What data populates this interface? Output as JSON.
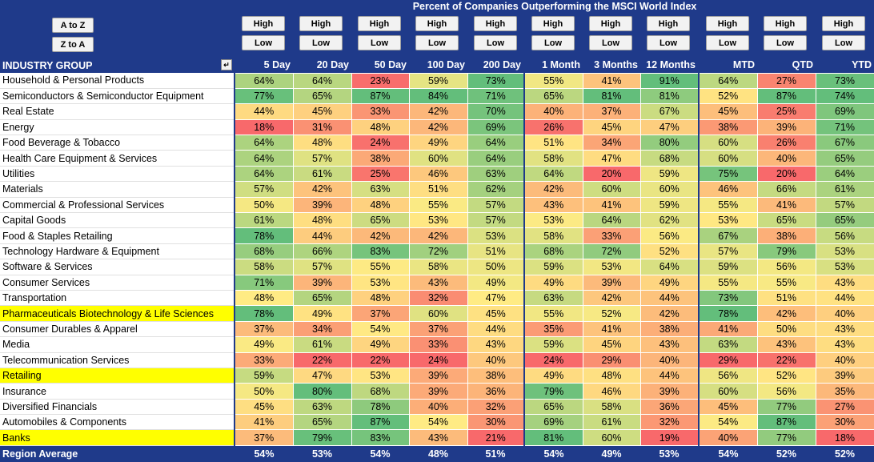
{
  "sort_buttons": {
    "a_to_z": "A to Z",
    "z_to_a": "Z to A"
  },
  "title": "Percent of Companies Outperforming the MSCI World Index",
  "filter_buttons": {
    "high": "High",
    "low": "Low"
  },
  "header_first": "INDUSTRY GROUP",
  "filter_icon": "dropdown-filter-icon",
  "columns": [
    "5 Day",
    "20 Day",
    "50 Day",
    "100 Day",
    "200 Day",
    "1 Month",
    "3 Months",
    "12 Months",
    "MTD",
    "QTD",
    "YTD"
  ],
  "rows": [
    {
      "label": "Household & Personal Products",
      "highlight": false,
      "values": [
        "64%",
        "64%",
        "23%",
        "59%",
        "73%",
        "55%",
        "41%",
        "91%",
        "64%",
        "27%",
        "73%"
      ]
    },
    {
      "label": "Semiconductors & Semiconductor Equipment",
      "highlight": false,
      "values": [
        "77%",
        "65%",
        "87%",
        "84%",
        "71%",
        "65%",
        "81%",
        "81%",
        "52%",
        "87%",
        "74%"
      ]
    },
    {
      "label": "Real Estate",
      "highlight": false,
      "values": [
        "44%",
        "45%",
        "33%",
        "42%",
        "70%",
        "40%",
        "37%",
        "67%",
        "45%",
        "25%",
        "69%"
      ]
    },
    {
      "label": "Energy",
      "highlight": false,
      "values": [
        "18%",
        "31%",
        "48%",
        "42%",
        "69%",
        "26%",
        "45%",
        "47%",
        "38%",
        "39%",
        "71%"
      ]
    },
    {
      "label": "Food Beverage & Tobacco",
      "highlight": false,
      "values": [
        "64%",
        "48%",
        "24%",
        "49%",
        "64%",
        "51%",
        "34%",
        "80%",
        "60%",
        "26%",
        "67%"
      ]
    },
    {
      "label": "Health Care Equipment & Services",
      "highlight": false,
      "values": [
        "64%",
        "57%",
        "38%",
        "60%",
        "64%",
        "58%",
        "47%",
        "68%",
        "60%",
        "40%",
        "65%"
      ]
    },
    {
      "label": "Utilities",
      "highlight": false,
      "values": [
        "64%",
        "61%",
        "25%",
        "46%",
        "63%",
        "64%",
        "20%",
        "59%",
        "75%",
        "20%",
        "64%"
      ]
    },
    {
      "label": "Materials",
      "highlight": false,
      "values": [
        "57%",
        "42%",
        "63%",
        "51%",
        "62%",
        "42%",
        "60%",
        "60%",
        "46%",
        "66%",
        "61%"
      ]
    },
    {
      "label": "Commercial & Professional Services",
      "highlight": false,
      "values": [
        "50%",
        "39%",
        "48%",
        "55%",
        "57%",
        "43%",
        "41%",
        "59%",
        "55%",
        "41%",
        "57%"
      ]
    },
    {
      "label": "Capital Goods",
      "highlight": false,
      "values": [
        "61%",
        "48%",
        "65%",
        "53%",
        "57%",
        "53%",
        "64%",
        "62%",
        "53%",
        "65%",
        "65%"
      ]
    },
    {
      "label": "Food & Staples Retailing",
      "highlight": false,
      "values": [
        "78%",
        "44%",
        "42%",
        "42%",
        "53%",
        "58%",
        "33%",
        "56%",
        "67%",
        "38%",
        "56%"
      ]
    },
    {
      "label": "Technology Hardware & Equipment",
      "highlight": false,
      "values": [
        "68%",
        "66%",
        "83%",
        "72%",
        "51%",
        "68%",
        "72%",
        "52%",
        "57%",
        "79%",
        "53%"
      ]
    },
    {
      "label": "Software & Services",
      "highlight": false,
      "values": [
        "58%",
        "57%",
        "55%",
        "58%",
        "50%",
        "59%",
        "53%",
        "64%",
        "59%",
        "56%",
        "53%"
      ]
    },
    {
      "label": "Consumer Services",
      "highlight": false,
      "values": [
        "71%",
        "39%",
        "53%",
        "43%",
        "49%",
        "49%",
        "39%",
        "49%",
        "55%",
        "55%",
        "43%"
      ]
    },
    {
      "label": "Transportation",
      "highlight": false,
      "values": [
        "48%",
        "65%",
        "48%",
        "32%",
        "47%",
        "63%",
        "42%",
        "44%",
        "73%",
        "51%",
        "44%"
      ]
    },
    {
      "label": "Pharmaceuticals Biotechnology & Life Sciences",
      "highlight": true,
      "values": [
        "78%",
        "49%",
        "37%",
        "60%",
        "45%",
        "55%",
        "52%",
        "42%",
        "78%",
        "42%",
        "40%"
      ]
    },
    {
      "label": "Consumer Durables & Apparel",
      "highlight": false,
      "values": [
        "37%",
        "34%",
        "54%",
        "37%",
        "44%",
        "35%",
        "41%",
        "38%",
        "41%",
        "50%",
        "43%"
      ]
    },
    {
      "label": "Media",
      "highlight": false,
      "values": [
        "49%",
        "61%",
        "49%",
        "33%",
        "43%",
        "59%",
        "45%",
        "43%",
        "63%",
        "43%",
        "43%"
      ]
    },
    {
      "label": "Telecommunication Services",
      "highlight": false,
      "values": [
        "33%",
        "22%",
        "22%",
        "24%",
        "40%",
        "24%",
        "29%",
        "40%",
        "29%",
        "22%",
        "40%"
      ]
    },
    {
      "label": "Retailing",
      "highlight": true,
      "values": [
        "59%",
        "47%",
        "53%",
        "39%",
        "38%",
        "49%",
        "48%",
        "44%",
        "56%",
        "52%",
        "39%"
      ]
    },
    {
      "label": "Insurance",
      "highlight": false,
      "values": [
        "50%",
        "80%",
        "68%",
        "39%",
        "36%",
        "79%",
        "46%",
        "39%",
        "60%",
        "56%",
        "35%"
      ]
    },
    {
      "label": "Diversified Financials",
      "highlight": false,
      "values": [
        "45%",
        "63%",
        "78%",
        "40%",
        "32%",
        "65%",
        "58%",
        "36%",
        "45%",
        "77%",
        "27%"
      ]
    },
    {
      "label": "Automobiles & Components",
      "highlight": false,
      "values": [
        "41%",
        "65%",
        "87%",
        "54%",
        "30%",
        "69%",
        "61%",
        "32%",
        "54%",
        "87%",
        "30%"
      ]
    },
    {
      "label": "Banks",
      "highlight": true,
      "values": [
        "37%",
        "79%",
        "83%",
        "43%",
        "21%",
        "81%",
        "60%",
        "19%",
        "40%",
        "77%",
        "18%"
      ]
    }
  ],
  "footer": {
    "label": "Region Average",
    "values": [
      "54%",
      "53%",
      "54%",
      "48%",
      "51%",
      "54%",
      "49%",
      "53%",
      "54%",
      "52%",
      "52%"
    ]
  },
  "colors": {
    "header_bg": "#1f3a8a",
    "highlight": "#ffff00",
    "low": "#f8696b",
    "mid": "#ffeb84",
    "high": "#63be7b"
  }
}
